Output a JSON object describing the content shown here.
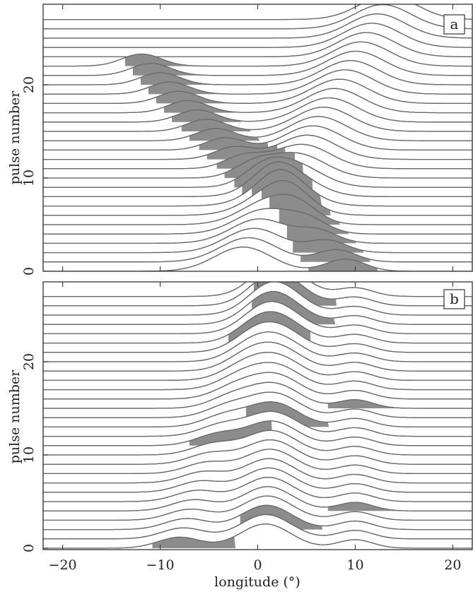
{
  "chart_data": [
    {
      "type": "line",
      "panel": "a",
      "xlabel": "",
      "ylabel": "pulse number",
      "xlim": [
        -22,
        22
      ],
      "ylim": [
        0,
        28.6
      ],
      "x_ticks": [
        -20,
        -10,
        0,
        10,
        20
      ],
      "y_ticks": [
        0,
        10,
        20
      ],
      "n_pulses": 28,
      "baseline_pulse_step": 1,
      "pulse_amplitude_in_pulse_units": 2.6,
      "components": [
        {
          "name": "main",
          "start_pulse": 0,
          "center_at_start": -1.5,
          "drift_per_pulse": 0.55,
          "width": 2.9,
          "amplitude": 1.0
        },
        {
          "name": "drifting",
          "start_pulse": 0,
          "center_at_start": 9,
          "drift_per_pulse": -0.95,
          "width": 2.0,
          "amplitude": 0.5,
          "end_pulse": 22
        }
      ],
      "shaded_feature_track": [
        {
          "pulse": 0,
          "center": 7.5
        },
        {
          "pulse": 4,
          "center": 4.5
        },
        {
          "pulse": 8,
          "center": 0.8
        },
        {
          "pulse": 12,
          "center": -2.8
        },
        {
          "pulse": 16,
          "center": -6.5
        },
        {
          "pulse": 20,
          "center": -9.6
        },
        {
          "pulse": 22,
          "center": -11.2
        }
      ]
    },
    {
      "type": "line",
      "panel": "b",
      "xlabel": "longitude (°)",
      "ylabel": "pulse number",
      "xlim": [
        -22,
        22
      ],
      "ylim": [
        0,
        28.6
      ],
      "x_ticks": [
        -20,
        -10,
        0,
        10,
        20
      ],
      "y_ticks": [
        0,
        10,
        20
      ],
      "n_pulses": 28,
      "baseline_pulse_step": 1,
      "pulse_amplitude_in_pulse_units": 2.6,
      "components": [
        {
          "name": "main",
          "start_pulse": 0,
          "center_at_start": 0.8,
          "drift_per_pulse": 0.06,
          "width": 2.6,
          "amplitude": 1.0
        },
        {
          "name": "left-drift",
          "start_pulse": 0,
          "center_at_start": -8.0,
          "drift_per_pulse": 0.35,
          "width": 2.2,
          "amplitude": 0.45
        },
        {
          "name": "right-bump",
          "start_pulse": 0,
          "center_at_start": 10.0,
          "drift_per_pulse": 0.0,
          "width": 1.8,
          "amplitude": 0.35
        }
      ],
      "shaded_pulses": [
        0,
        2,
        4,
        11,
        13,
        15,
        22,
        24,
        26
      ]
    }
  ],
  "panel_a": {
    "tag": "a",
    "ylabel": "pulse number",
    "yticks": [
      "0",
      "10",
      "20"
    ]
  },
  "panel_b": {
    "tag": "b",
    "ylabel": "pulse number",
    "yticks": [
      "0",
      "10",
      "20"
    ],
    "xticks": [
      "−20",
      "−10",
      "0",
      "10",
      "20"
    ],
    "xlabel": "longitude (°)"
  }
}
